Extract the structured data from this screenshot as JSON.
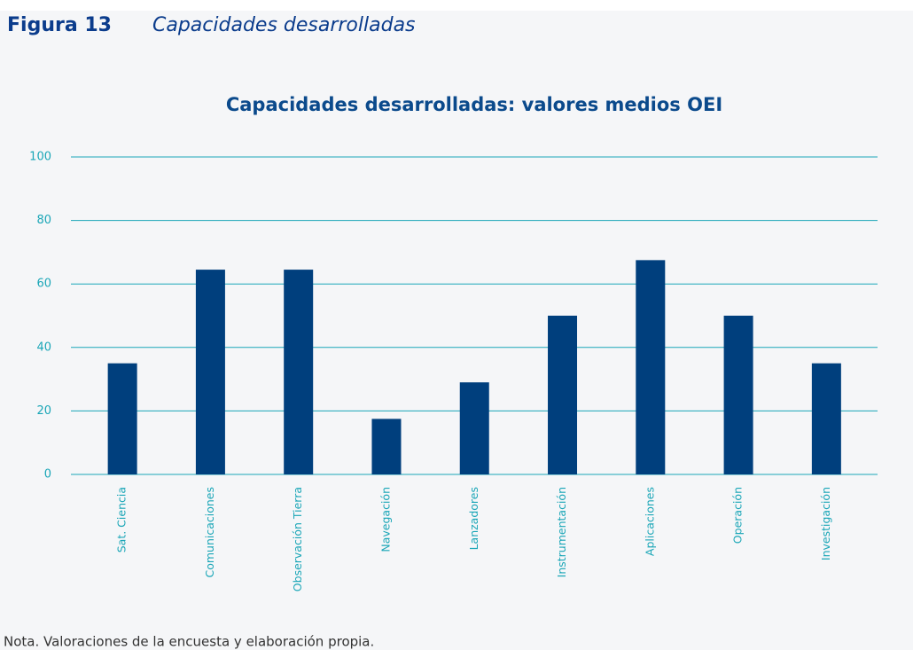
{
  "header": {
    "label": "Figura 13",
    "caption": "Capacidades desarrolladas"
  },
  "chart_data": {
    "type": "bar",
    "title": "Capacidades desarrolladas: valores medios OEI",
    "categories": [
      "Sat. Ciencia",
      "Comunicaciones",
      "Observación Tierra",
      "Navegación",
      "Lanzadores",
      "Instrumentación",
      "Aplicaciones",
      "Operación",
      "Investigación"
    ],
    "values": [
      35,
      64.5,
      64.5,
      17.5,
      29,
      50,
      67.5,
      50,
      35
    ],
    "color": "#003f7d",
    "ylim": [
      0,
      100
    ],
    "yticks": [
      0,
      20,
      40,
      60,
      80,
      100
    ],
    "grid": true
  },
  "note": "Nota. Valoraciones de la encuesta y elaboración propia."
}
